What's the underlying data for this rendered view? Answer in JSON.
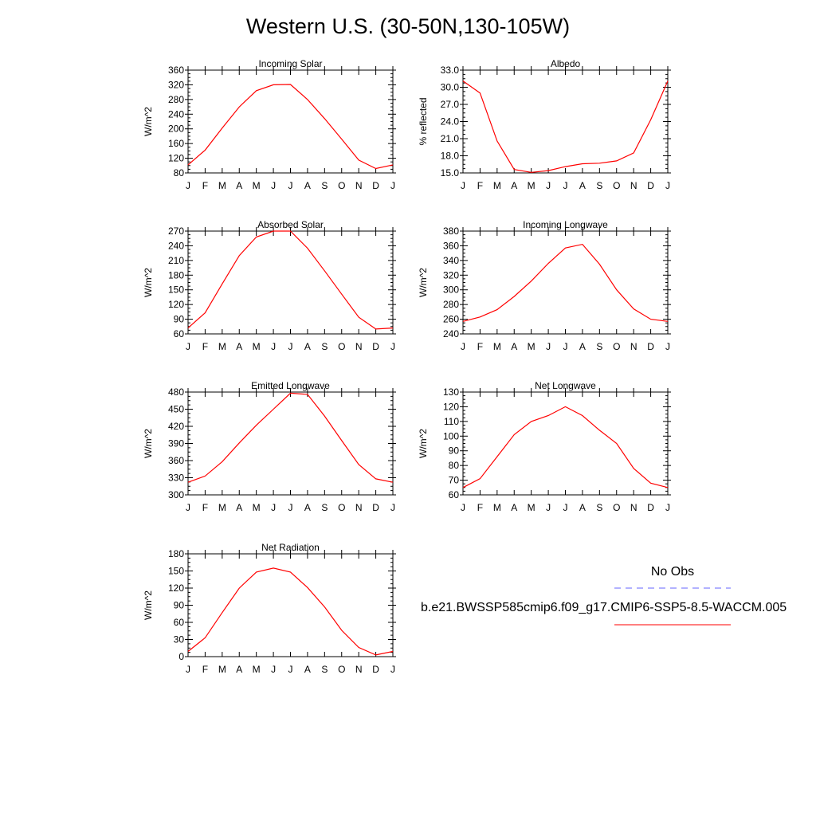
{
  "page_title": "Western U.S. (30-50N,130-105W)",
  "months": [
    "J",
    "F",
    "M",
    "A",
    "M",
    "J",
    "J",
    "A",
    "S",
    "O",
    "N",
    "D",
    "J"
  ],
  "colors": {
    "model_line": "#ff0000",
    "obs_line": "#6666ff",
    "axis": "#000000"
  },
  "legend": {
    "obs_label": "No Obs",
    "model_label": "b.e21.BWSSP585cmip6.f09_g17.CMIP6-SSP5-8.5-WACCM.005"
  },
  "chart_data": [
    {
      "type": "line",
      "title": "Incoming Solar",
      "ylabel": "W/m^2",
      "ylim": [
        80,
        360
      ],
      "yticks": [
        80,
        120,
        160,
        200,
        240,
        280,
        320,
        360
      ],
      "ytick_labels": [
        "80",
        "120",
        "160",
        "200",
        "240",
        "280",
        "320",
        "360"
      ],
      "series": [
        {
          "values": [
            102,
            142,
            202,
            260,
            304,
            320,
            321,
            280,
            228,
            172,
            115,
            92,
            102
          ]
        }
      ]
    },
    {
      "type": "line",
      "title": "Albedo",
      "ylabel": "% reflected",
      "ylim": [
        15,
        33
      ],
      "yticks": [
        15,
        18,
        21,
        24,
        27,
        30,
        33
      ],
      "ytick_labels": [
        "15.0",
        "18.0",
        "21.0",
        "24.0",
        "27.0",
        "30.0",
        "33.0"
      ],
      "series": [
        {
          "values": [
            31.1,
            29.0,
            20.6,
            15.6,
            15.1,
            15.4,
            16.1,
            16.6,
            16.7,
            17.1,
            18.5,
            24.3,
            31.1
          ]
        }
      ]
    },
    {
      "type": "line",
      "title": "Absorbed Solar",
      "ylabel": "W/m^2",
      "ylim": [
        60,
        270
      ],
      "yticks": [
        60,
        90,
        120,
        150,
        180,
        210,
        240,
        270
      ],
      "ytick_labels": [
        "60",
        "90",
        "120",
        "150",
        "180",
        "210",
        "240",
        "270"
      ],
      "series": [
        {
          "values": [
            72,
            103,
            162,
            220,
            258,
            270,
            270,
            235,
            189,
            141,
            94,
            70,
            72
          ]
        }
      ]
    },
    {
      "type": "line",
      "title": "Incoming Longwave",
      "ylabel": "W/m^2",
      "ylim": [
        240,
        380
      ],
      "yticks": [
        240,
        260,
        280,
        300,
        320,
        340,
        360,
        380
      ],
      "ytick_labels": [
        "240",
        "260",
        "280",
        "300",
        "320",
        "340",
        "360",
        "380"
      ],
      "series": [
        {
          "values": [
            257,
            263,
            273,
            291,
            312,
            336,
            357,
            362,
            335,
            300,
            274,
            260,
            257
          ]
        }
      ]
    },
    {
      "type": "line",
      "title": "Emitted Longwave",
      "ylabel": "W/m^2",
      "ylim": [
        300,
        480
      ],
      "yticks": [
        300,
        330,
        360,
        390,
        420,
        450,
        480
      ],
      "ytick_labels": [
        "300",
        "330",
        "360",
        "390",
        "420",
        "450",
        "480"
      ],
      "series": [
        {
          "values": [
            322,
            333,
            358,
            391,
            422,
            450,
            478,
            476,
            438,
            395,
            353,
            328,
            322
          ]
        }
      ]
    },
    {
      "type": "line",
      "title": "Net Longwave",
      "ylabel": "W/m^2",
      "ylim": [
        60,
        130
      ],
      "yticks": [
        60,
        70,
        80,
        90,
        100,
        110,
        120,
        130
      ],
      "ytick_labels": [
        "60",
        "70",
        "80",
        "90",
        "100",
        "110",
        "120",
        "130"
      ],
      "series": [
        {
          "values": [
            65,
            71,
            86,
            101,
            110,
            114,
            120,
            114,
            104,
            95,
            78,
            68,
            65
          ]
        }
      ]
    },
    {
      "type": "line",
      "title": "Net Radiation",
      "ylabel": "W/m^2",
      "ylim": [
        0,
        180
      ],
      "yticks": [
        0,
        30,
        60,
        90,
        120,
        150,
        180
      ],
      "ytick_labels": [
        "0",
        "30",
        "60",
        "90",
        "120",
        "150",
        "180"
      ],
      "series": [
        {
          "values": [
            9,
            33,
            77,
            120,
            148,
            155,
            148,
            121,
            87,
            46,
            16,
            3,
            9
          ]
        }
      ]
    }
  ]
}
